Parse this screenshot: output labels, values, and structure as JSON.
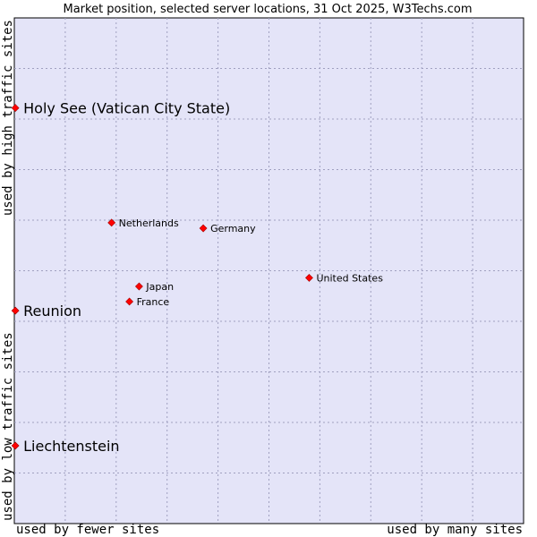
{
  "chart_data": {
    "type": "scatter",
    "title": "Market position, selected server locations, 31 Oct 2025, W3Techs.com",
    "xlabel_left": "used by fewer sites",
    "xlabel_right": "used by many sites",
    "ylabel_bottom": "used by low traffic sites",
    "ylabel_top": "used by high traffic sites",
    "xlim": [
      0,
      100
    ],
    "ylim": [
      0,
      100
    ],
    "grid": true,
    "point_color": "#ff0000",
    "plot_background": "#e4e4f8",
    "grid_color": "#a0a0c0",
    "points": [
      {
        "label": "Holy See (Vatican City State)",
        "x": 0.2,
        "y": 82.2,
        "emphasis": true
      },
      {
        "label": "Reunion",
        "x": 0.2,
        "y": 42.1,
        "emphasis": true
      },
      {
        "label": "Liechtenstein",
        "x": 0.2,
        "y": 15.4,
        "emphasis": true
      },
      {
        "label": "Netherlands",
        "x": 19.1,
        "y": 59.5,
        "emphasis": false
      },
      {
        "label": "Germany",
        "x": 37.1,
        "y": 58.4,
        "emphasis": false
      },
      {
        "label": "Japan",
        "x": 24.5,
        "y": 46.9,
        "emphasis": false
      },
      {
        "label": "France",
        "x": 22.6,
        "y": 43.9,
        "emphasis": false
      },
      {
        "label": "United States",
        "x": 57.9,
        "y": 48.6,
        "emphasis": false
      }
    ]
  }
}
